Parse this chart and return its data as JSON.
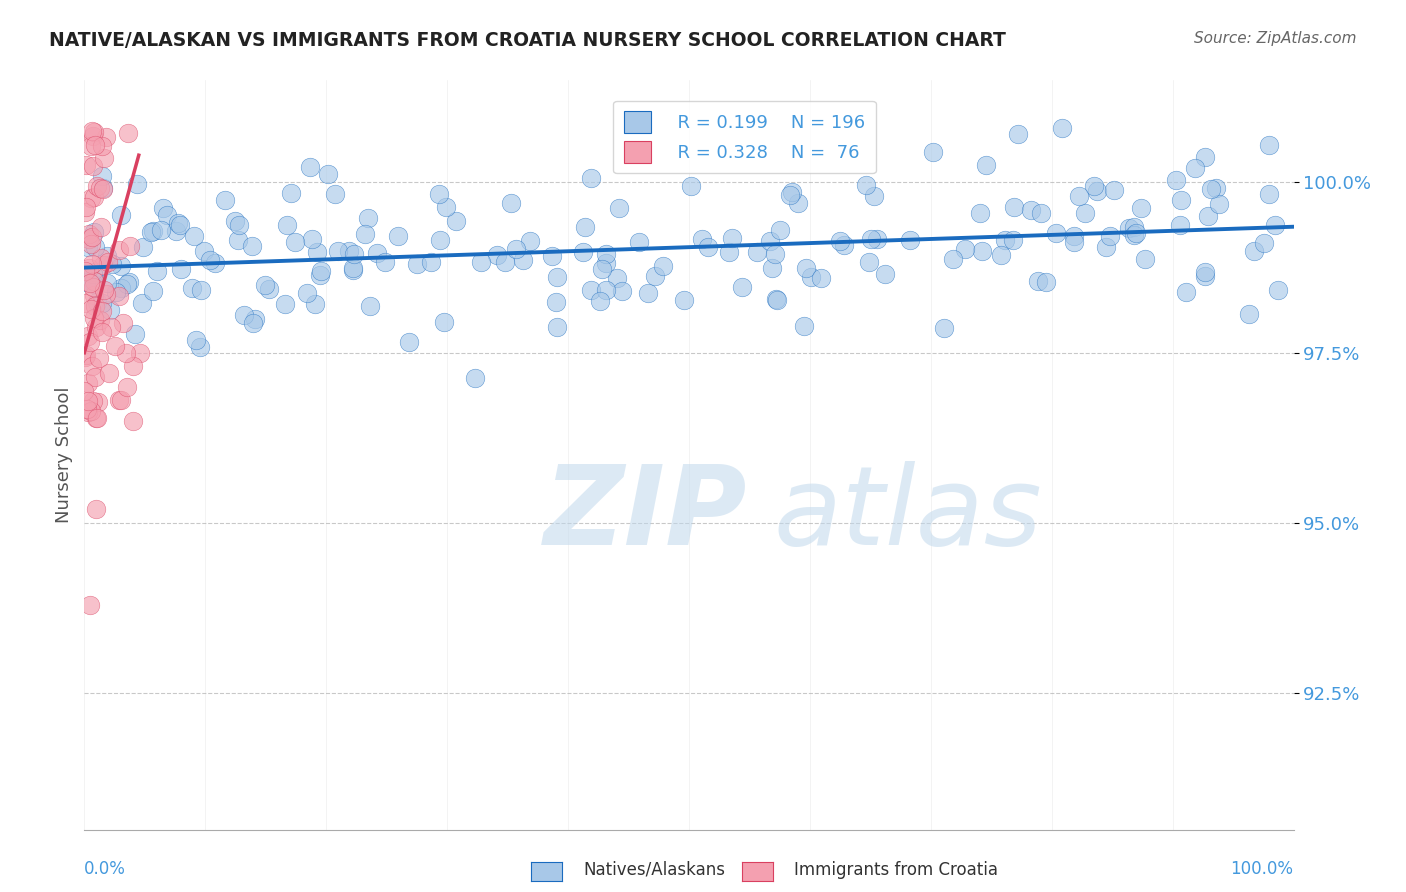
{
  "title": "NATIVE/ALASKAN VS IMMIGRANTS FROM CROATIA NURSERY SCHOOL CORRELATION CHART",
  "source": "Source: ZipAtlas.com",
  "ylabel": "Nursery School",
  "xlim": [
    0,
    100
  ],
  "ylim": [
    90.5,
    101.5
  ],
  "yticks": [
    92.5,
    95.0,
    97.5,
    100.0
  ],
  "ytick_labels": [
    "92.5%",
    "95.0%",
    "97.5%",
    "100.0%"
  ],
  "legend_blue_r": "R = 0.199",
  "legend_blue_n": "N = 196",
  "legend_pink_r": "R = 0.328",
  "legend_pink_n": "N =  76",
  "blue_color": "#a8c8e8",
  "pink_color": "#f4a0b0",
  "blue_line_color": "#1a6bbf",
  "pink_line_color": "#d94060",
  "watermark_zip": "ZIP",
  "watermark_atlas": "atlas",
  "watermark_color": "#c0d8ec",
  "background_color": "#ffffff",
  "grid_color": "#bbbbbb",
  "title_color": "#222222",
  "axis_label_color": "#555555",
  "tick_label_color": "#4499dd",
  "blue_n": 196,
  "pink_n": 76,
  "blue_line_y0": 98.75,
  "blue_line_y1": 99.35,
  "pink_line_x0": 0.0,
  "pink_line_y0": 97.5,
  "pink_line_x1": 4.5,
  "pink_line_y1": 100.4
}
